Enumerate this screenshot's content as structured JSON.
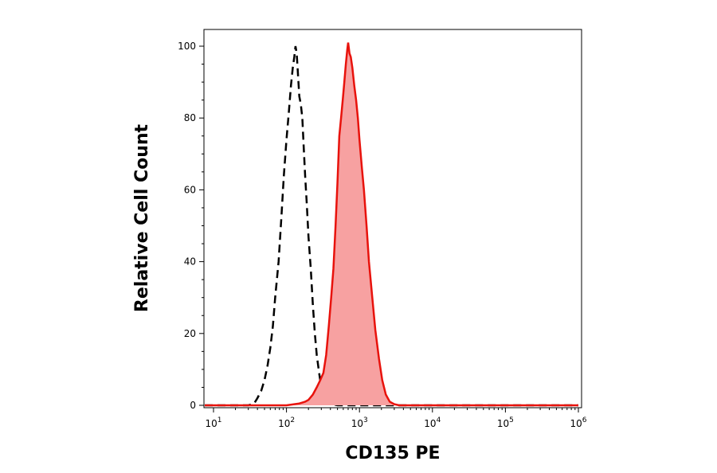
{
  "chart_data": {
    "type": "area",
    "xlabel": "CD135 PE",
    "ylabel": "Relative Cell Count",
    "x_scale": "log",
    "xlim": [
      10,
      1000000
    ],
    "ylim": [
      0,
      100
    ],
    "x_ticks": [
      {
        "value": 10,
        "base": "10",
        "exp": "1"
      },
      {
        "value": 100,
        "base": "10",
        "exp": "2"
      },
      {
        "value": 1000,
        "base": "10",
        "exp": "3"
      },
      {
        "value": 10000,
        "base": "10",
        "exp": "4"
      },
      {
        "value": 100000,
        "base": "10",
        "exp": "5"
      },
      {
        "value": 1000000,
        "base": "10",
        "exp": "6"
      }
    ],
    "y_ticks": [
      "0",
      "20",
      "40",
      "60",
      "80",
      "100"
    ],
    "grid": false,
    "series": [
      {
        "style": "dashed",
        "color": "#000000",
        "points": [
          [
            7,
            0
          ],
          [
            20,
            0
          ],
          [
            30,
            0
          ],
          [
            36,
            0.5
          ],
          [
            40,
            2
          ],
          [
            45,
            4
          ],
          [
            50,
            7
          ],
          [
            55,
            11
          ],
          [
            60,
            16
          ],
          [
            65,
            22
          ],
          [
            70,
            30
          ],
          [
            78,
            40
          ],
          [
            85,
            52
          ],
          [
            92,
            64
          ],
          [
            100,
            74
          ],
          [
            108,
            82
          ],
          [
            115,
            89
          ],
          [
            122,
            94
          ],
          [
            128,
            97
          ],
          [
            133,
            100
          ],
          [
            138,
            98
          ],
          [
            143,
            93
          ],
          [
            150,
            86
          ],
          [
            157,
            84
          ],
          [
            165,
            80
          ],
          [
            172,
            72
          ],
          [
            180,
            64
          ],
          [
            190,
            56
          ],
          [
            200,
            47
          ],
          [
            215,
            38
          ],
          [
            230,
            28
          ],
          [
            245,
            20
          ],
          [
            260,
            14
          ],
          [
            280,
            9
          ],
          [
            300,
            5
          ],
          [
            330,
            2
          ],
          [
            370,
            1
          ],
          [
            430,
            0.3
          ],
          [
            500,
            0
          ],
          [
            1000000,
            0
          ]
        ]
      },
      {
        "style": "filled",
        "color": "#e8120c",
        "fill": "#f7a1a1",
        "points": [
          [
            7,
            0
          ],
          [
            100,
            0
          ],
          [
            150,
            0.5
          ],
          [
            180,
            1
          ],
          [
            200,
            1.5
          ],
          [
            230,
            3
          ],
          [
            260,
            5
          ],
          [
            290,
            7
          ],
          [
            320,
            9
          ],
          [
            350,
            14
          ],
          [
            380,
            22
          ],
          [
            410,
            30
          ],
          [
            440,
            38
          ],
          [
            470,
            50
          ],
          [
            500,
            62
          ],
          [
            530,
            75
          ],
          [
            560,
            80
          ],
          [
            590,
            85
          ],
          [
            620,
            90
          ],
          [
            650,
            95
          ],
          [
            680,
            99
          ],
          [
            700,
            101
          ],
          [
            730,
            98
          ],
          [
            760,
            97
          ],
          [
            800,
            94
          ],
          [
            850,
            89
          ],
          [
            900,
            85
          ],
          [
            950,
            80
          ],
          [
            1000,
            74
          ],
          [
            1080,
            66
          ],
          [
            1150,
            60
          ],
          [
            1250,
            50
          ],
          [
            1350,
            40
          ],
          [
            1500,
            30
          ],
          [
            1650,
            21
          ],
          [
            1850,
            13
          ],
          [
            2050,
            7
          ],
          [
            2300,
            3
          ],
          [
            2600,
            1
          ],
          [
            3000,
            0.3
          ],
          [
            3500,
            0
          ],
          [
            1000000,
            0
          ]
        ]
      }
    ]
  }
}
